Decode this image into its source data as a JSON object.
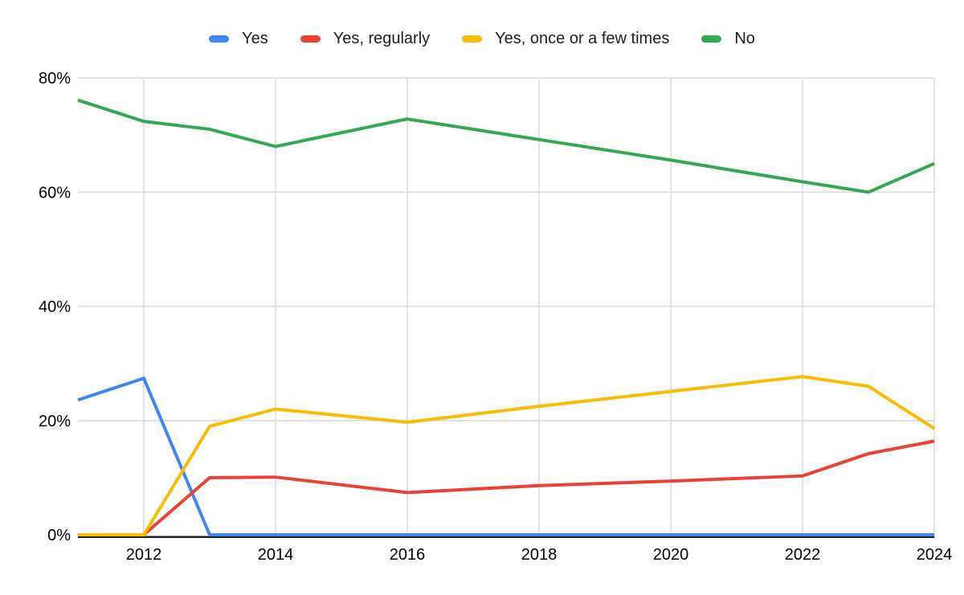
{
  "chart_data": {
    "type": "line",
    "title": "",
    "xlabel": "",
    "ylabel": "",
    "x": [
      2011,
      2012,
      2013,
      2014,
      2016,
      2018,
      2020,
      2022,
      2023,
      2024
    ],
    "series": [
      {
        "name": "Yes",
        "color": "#4285F4",
        "values": [
          23.6,
          27.4,
          0,
          0,
          0,
          0,
          0,
          0,
          0,
          0
        ]
      },
      {
        "name": "Yes, regularly",
        "color": "#EA4335",
        "values": [
          0,
          0,
          10.0,
          10.1,
          7.4,
          8.6,
          9.4,
          10.3,
          14.2,
          16.4
        ]
      },
      {
        "name": "Yes, once or a few times",
        "color": "#FBBC04",
        "values": [
          0,
          0,
          19.0,
          22.0,
          19.7,
          22.5,
          25.1,
          27.7,
          26.0,
          18.6
        ]
      },
      {
        "name": "No",
        "color": "#34A853",
        "values": [
          76.1,
          72.4,
          71.0,
          68.0,
          72.8,
          69.2,
          65.6,
          61.8,
          60.0,
          65.0
        ]
      }
    ],
    "xlim": [
      2011,
      2024
    ],
    "ylim": [
      0,
      80
    ],
    "x_ticks": [
      2012,
      2014,
      2016,
      2018,
      2020,
      2022,
      2024
    ],
    "y_ticks": [
      0,
      20,
      40,
      60,
      80
    ],
    "y_tick_suffix": "%",
    "grid": true,
    "legend_position": "top",
    "colors": {
      "gridline": "#d9d9d9",
      "axis_line": "#212121",
      "tick_label": "#000000",
      "background": "#ffffff"
    }
  }
}
